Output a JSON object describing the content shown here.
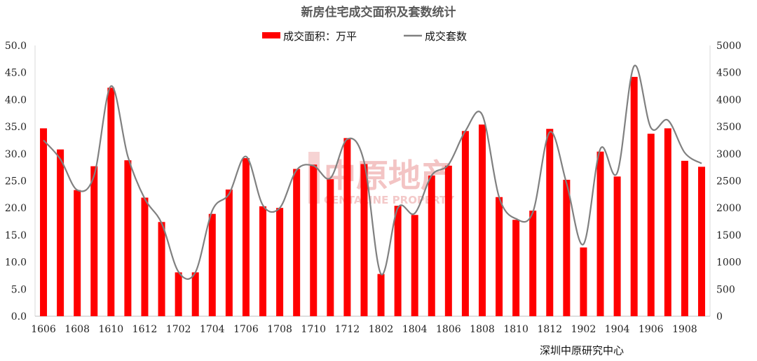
{
  "chart_data": {
    "type": "bar",
    "title": "新房住宅成交面积及套数统计",
    "source": "深圳中原研究中心",
    "watermark": {
      "cn": "中原地产",
      "en": "CENTALINE PROPERTY"
    },
    "legend": {
      "placement": "top-center"
    },
    "categories": [
      "1606",
      "1607",
      "1608",
      "1609",
      "1610",
      "1611",
      "1612",
      "1701",
      "1702",
      "1703",
      "1704",
      "1705",
      "1706",
      "1707",
      "1708",
      "1709",
      "1710",
      "1711",
      "1712",
      "1801",
      "1802",
      "1803",
      "1804",
      "1805",
      "1806",
      "1807",
      "1808",
      "1809",
      "1810",
      "1811",
      "1812",
      "1901",
      "1902",
      "1903",
      "1904",
      "1905",
      "1906",
      "1907",
      "1908",
      "1909"
    ],
    "x_tick_labels": [
      "1606",
      "1608",
      "1610",
      "1612",
      "1702",
      "1704",
      "1706",
      "1708",
      "1710",
      "1712",
      "1802",
      "1804",
      "1806",
      "1808",
      "1810",
      "1812",
      "1902",
      "1904",
      "1906",
      "1908"
    ],
    "left_axis": {
      "ylim": [
        0,
        50
      ],
      "ticks": [
        "0.0",
        "5.0",
        "10.0",
        "15.0",
        "20.0",
        "25.0",
        "30.0",
        "35.0",
        "40.0",
        "45.0",
        "50.0"
      ]
    },
    "right_axis": {
      "ylim": [
        0,
        5000
      ],
      "ticks": [
        "0",
        "500",
        "1000",
        "1500",
        "2000",
        "2500",
        "3000",
        "3500",
        "4000",
        "4500",
        "5000"
      ]
    },
    "series": [
      {
        "name": "成交面积：万平",
        "type": "bar",
        "axis": "left",
        "color": "#ff0000",
        "values": [
          34.7,
          30.8,
          23.3,
          27.7,
          42.2,
          28.8,
          21.9,
          17.4,
          8.1,
          8.1,
          18.9,
          23.4,
          29.2,
          20.3,
          20.0,
          27.2,
          28.0,
          25.3,
          32.9,
          28.1,
          7.8,
          20.4,
          18.7,
          26.0,
          27.8,
          34.2,
          35.4,
          22.0,
          17.8,
          19.5,
          34.6,
          25.2,
          12.7,
          30.4,
          25.8,
          44.2,
          33.7,
          34.7,
          28.7,
          27.6
        ]
      },
      {
        "name": "成交套数",
        "type": "line",
        "axis": "right",
        "color": "#808080",
        "values": [
          3250,
          2900,
          2330,
          2600,
          4250,
          2950,
          2170,
          1720,
          820,
          810,
          1950,
          2260,
          2950,
          2050,
          2000,
          2700,
          2780,
          2550,
          3270,
          2850,
          780,
          2000,
          1900,
          2600,
          2800,
          3420,
          3720,
          2200,
          1800,
          1920,
          3400,
          2450,
          1330,
          3090,
          2650,
          4620,
          3480,
          3620,
          3020,
          2820
        ]
      }
    ]
  }
}
